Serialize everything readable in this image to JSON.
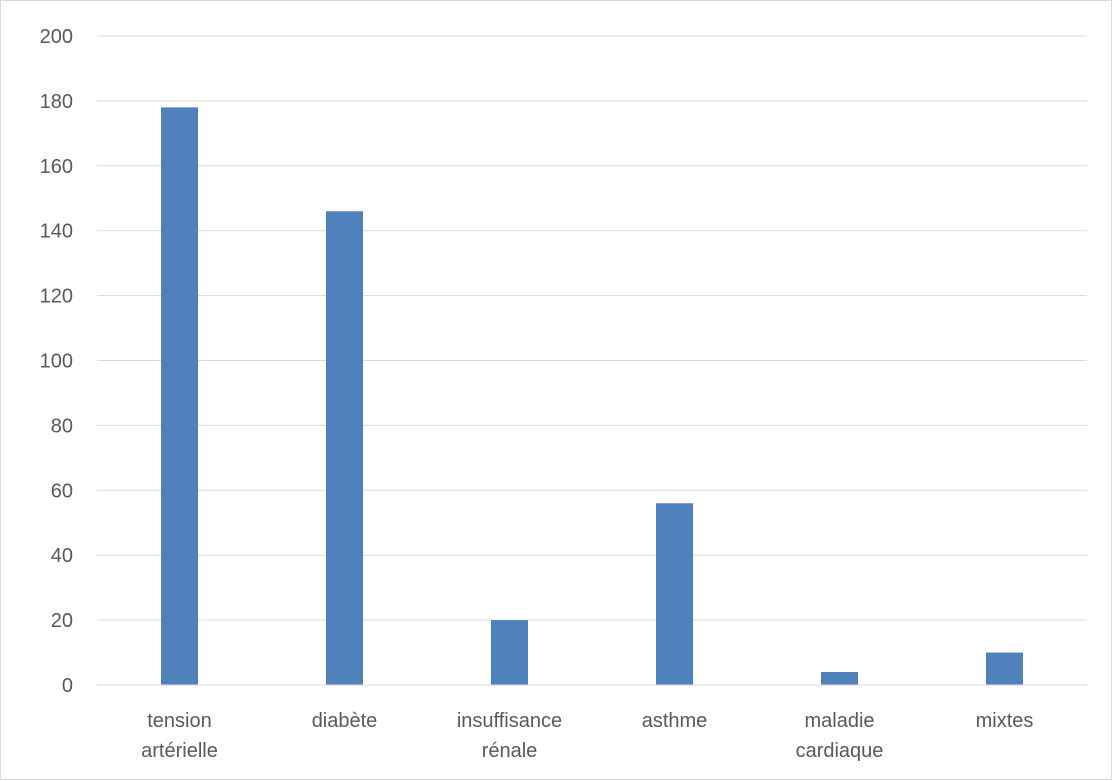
{
  "chart_data": {
    "type": "bar",
    "title": "",
    "xlabel": "",
    "ylabel": "",
    "categories": [
      [
        "tension",
        "artérielle"
      ],
      [
        "diabète"
      ],
      [
        "insuffisance",
        "rénale"
      ],
      [
        "asthme"
      ],
      [
        "maladie",
        "cardiaque"
      ],
      [
        "mixtes"
      ]
    ],
    "values": [
      178,
      146,
      20,
      56,
      4,
      10
    ],
    "ylim": [
      0,
      200
    ],
    "yticks": [
      0,
      20,
      40,
      60,
      80,
      100,
      120,
      140,
      160,
      180,
      200
    ],
    "grid": true,
    "legend": "none",
    "bar_color": "#4f81bd"
  }
}
